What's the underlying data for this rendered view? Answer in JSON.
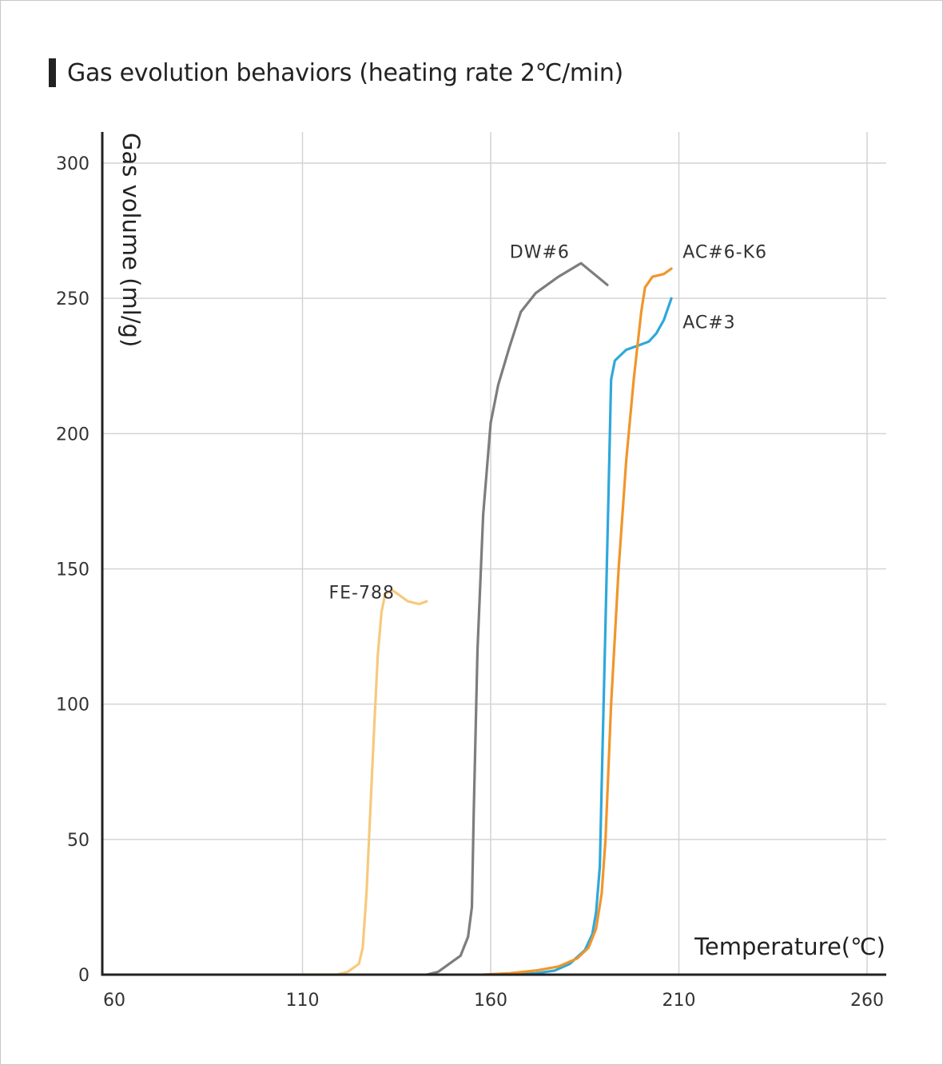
{
  "chart_data": {
    "type": "line",
    "title": "Gas evolution behaviors (heating rate 2℃/min)",
    "xlabel": "Temperature(℃)",
    "ylabel": "Gas volume (ml/g)",
    "xlim": [
      60,
      270
    ],
    "ylim": [
      0,
      310
    ],
    "x_ticks": [
      "60",
      "110",
      "160",
      "210",
      "260"
    ],
    "y_ticks": [
      "0",
      "50",
      "100",
      "150",
      "200",
      "250",
      "300"
    ],
    "grid": true,
    "series": [
      {
        "name": "FE-788",
        "color": "#f7c97e",
        "points": [
          [
            110,
            0
          ],
          [
            119,
            0
          ],
          [
            122,
            1
          ],
          [
            125,
            4
          ],
          [
            126,
            10
          ],
          [
            127,
            30
          ],
          [
            128,
            60
          ],
          [
            129,
            90
          ],
          [
            130,
            118
          ],
          [
            131,
            134
          ],
          [
            132,
            141
          ],
          [
            134,
            142
          ],
          [
            136,
            140
          ],
          [
            138,
            138
          ],
          [
            141,
            137
          ],
          [
            143,
            138
          ]
        ]
      },
      {
        "name": "DW#6",
        "color": "#7d7d7d",
        "points": [
          [
            143,
            0
          ],
          [
            146,
            1
          ],
          [
            148,
            3
          ],
          [
            152,
            7
          ],
          [
            154,
            14
          ],
          [
            155,
            25
          ],
          [
            155.5,
            60
          ],
          [
            156.5,
            120
          ],
          [
            158,
            170
          ],
          [
            160,
            204
          ],
          [
            162,
            218
          ],
          [
            165,
            232
          ],
          [
            168,
            245
          ],
          [
            172,
            252
          ],
          [
            178,
            258
          ],
          [
            184,
            263
          ],
          [
            191,
            255
          ]
        ]
      },
      {
        "name": "AC#3",
        "color": "#2ea8db",
        "points": [
          [
            167,
            0
          ],
          [
            172,
            0.5
          ],
          [
            177,
            1.5
          ],
          [
            181,
            4
          ],
          [
            185,
            9
          ],
          [
            187,
            15
          ],
          [
            188,
            23
          ],
          [
            189,
            40
          ],
          [
            189.5,
            70
          ],
          [
            190.5,
            130
          ],
          [
            191.5,
            190
          ],
          [
            192,
            220
          ],
          [
            193,
            227
          ],
          [
            196,
            231
          ],
          [
            200,
            233
          ],
          [
            202,
            234
          ],
          [
            204,
            237
          ],
          [
            206,
            242
          ],
          [
            208,
            250
          ]
        ]
      },
      {
        "name": "AC#6-K6",
        "color": "#f0962b",
        "points": [
          [
            158,
            0
          ],
          [
            165,
            0.5
          ],
          [
            172,
            1.5
          ],
          [
            178,
            3
          ],
          [
            183,
            6
          ],
          [
            186,
            10
          ],
          [
            188,
            17
          ],
          [
            189.5,
            30
          ],
          [
            190.5,
            50
          ],
          [
            192,
            100
          ],
          [
            194,
            150
          ],
          [
            196,
            190
          ],
          [
            198,
            220
          ],
          [
            200,
            245
          ],
          [
            201,
            254
          ],
          [
            203,
            258
          ],
          [
            206,
            259
          ],
          [
            208,
            261
          ]
        ]
      }
    ]
  }
}
